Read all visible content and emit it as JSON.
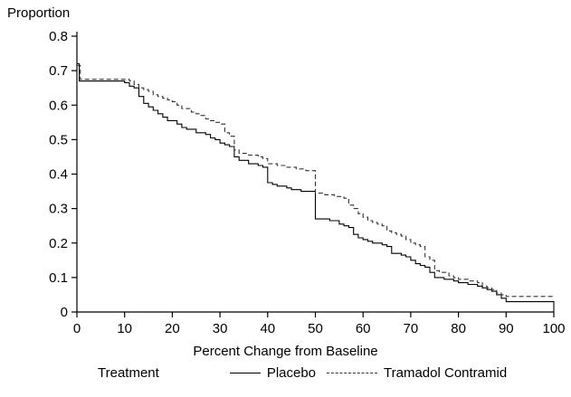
{
  "chart_data": {
    "type": "line",
    "subtype": "step",
    "title": "",
    "xlabel": "Percent Change from Baseline",
    "ylabel": "Proportion",
    "xlim": [
      0,
      100
    ],
    "ylim": [
      0,
      0.8
    ],
    "xticks": [
      0,
      10,
      20,
      30,
      40,
      50,
      60,
      70,
      80,
      90,
      100
    ],
    "yticks": [
      0,
      0.1,
      0.2,
      0.3,
      0.4,
      0.5,
      0.6,
      0.7,
      0.8
    ],
    "grid": false,
    "legend_title": "Treatment",
    "legend_position": "bottom",
    "colors": {
      "axis": "#000000",
      "solid_line": "#000000",
      "dashed_line": "#333333"
    },
    "series": [
      {
        "name": "Placebo",
        "style": "solid",
        "points": [
          [
            0,
            0.72
          ],
          [
            0.5,
            0.67
          ],
          [
            10,
            0.665
          ],
          [
            11,
            0.655
          ],
          [
            12,
            0.65
          ],
          [
            13,
            0.625
          ],
          [
            14,
            0.605
          ],
          [
            15,
            0.595
          ],
          [
            16,
            0.585
          ],
          [
            17,
            0.575
          ],
          [
            18,
            0.565
          ],
          [
            19,
            0.555
          ],
          [
            21,
            0.545
          ],
          [
            22,
            0.535
          ],
          [
            23,
            0.53
          ],
          [
            25,
            0.52
          ],
          [
            27,
            0.515
          ],
          [
            28,
            0.505
          ],
          [
            29,
            0.5
          ],
          [
            30,
            0.49
          ],
          [
            31,
            0.485
          ],
          [
            32,
            0.48
          ],
          [
            33,
            0.45
          ],
          [
            34,
            0.44
          ],
          [
            36,
            0.43
          ],
          [
            38,
            0.425
          ],
          [
            39,
            0.42
          ],
          [
            40,
            0.375
          ],
          [
            41,
            0.37
          ],
          [
            42,
            0.365
          ],
          [
            44,
            0.36
          ],
          [
            45,
            0.355
          ],
          [
            47,
            0.35
          ],
          [
            50,
            0.27
          ],
          [
            53,
            0.265
          ],
          [
            55,
            0.255
          ],
          [
            56,
            0.25
          ],
          [
            57,
            0.245
          ],
          [
            58,
            0.225
          ],
          [
            59,
            0.215
          ],
          [
            60,
            0.21
          ],
          [
            61,
            0.205
          ],
          [
            62,
            0.2
          ],
          [
            64,
            0.195
          ],
          [
            65,
            0.19
          ],
          [
            66,
            0.17
          ],
          [
            68,
            0.165
          ],
          [
            69,
            0.16
          ],
          [
            70,
            0.15
          ],
          [
            71,
            0.14
          ],
          [
            72,
            0.135
          ],
          [
            73,
            0.13
          ],
          [
            74,
            0.115
          ],
          [
            75,
            0.1
          ],
          [
            77,
            0.095
          ],
          [
            79,
            0.09
          ],
          [
            80,
            0.085
          ],
          [
            82,
            0.08
          ],
          [
            84,
            0.075
          ],
          [
            85,
            0.07
          ],
          [
            86,
            0.065
          ],
          [
            87,
            0.06
          ],
          [
            88,
            0.05
          ],
          [
            89,
            0.04
          ],
          [
            90,
            0.03
          ],
          [
            100,
            0
          ]
        ]
      },
      {
        "name": "Tramadol Contramid",
        "style": "dashed",
        "points": [
          [
            0,
            0.715
          ],
          [
            0.7,
            0.675
          ],
          [
            11,
            0.67
          ],
          [
            12,
            0.66
          ],
          [
            13,
            0.65
          ],
          [
            14,
            0.645
          ],
          [
            15,
            0.64
          ],
          [
            16,
            0.63
          ],
          [
            17,
            0.625
          ],
          [
            18,
            0.62
          ],
          [
            19,
            0.615
          ],
          [
            20,
            0.61
          ],
          [
            21,
            0.6
          ],
          [
            22,
            0.59
          ],
          [
            24,
            0.58
          ],
          [
            25,
            0.575
          ],
          [
            26,
            0.57
          ],
          [
            27,
            0.56
          ],
          [
            28,
            0.555
          ],
          [
            29,
            0.55
          ],
          [
            30,
            0.545
          ],
          [
            31,
            0.52
          ],
          [
            32,
            0.51
          ],
          [
            33,
            0.47
          ],
          [
            34,
            0.46
          ],
          [
            36,
            0.455
          ],
          [
            38,
            0.45
          ],
          [
            39,
            0.445
          ],
          [
            40,
            0.43
          ],
          [
            42,
            0.425
          ],
          [
            44,
            0.42
          ],
          [
            46,
            0.415
          ],
          [
            48,
            0.41
          ],
          [
            50,
            0.345
          ],
          [
            52,
            0.34
          ],
          [
            54,
            0.335
          ],
          [
            56,
            0.33
          ],
          [
            57,
            0.31
          ],
          [
            58,
            0.3
          ],
          [
            59,
            0.285
          ],
          [
            60,
            0.275
          ],
          [
            61,
            0.265
          ],
          [
            62,
            0.26
          ],
          [
            63,
            0.255
          ],
          [
            64,
            0.25
          ],
          [
            65,
            0.235
          ],
          [
            66,
            0.23
          ],
          [
            67,
            0.225
          ],
          [
            68,
            0.22
          ],
          [
            69,
            0.21
          ],
          [
            70,
            0.2
          ],
          [
            71,
            0.195
          ],
          [
            72,
            0.19
          ],
          [
            73,
            0.16
          ],
          [
            74,
            0.15
          ],
          [
            75,
            0.12
          ],
          [
            76,
            0.115
          ],
          [
            78,
            0.105
          ],
          [
            79,
            0.1
          ],
          [
            80,
            0.095
          ],
          [
            82,
            0.09
          ],
          [
            84,
            0.085
          ],
          [
            85,
            0.075
          ],
          [
            86,
            0.07
          ],
          [
            87,
            0.065
          ],
          [
            88,
            0.055
          ],
          [
            89,
            0.05
          ],
          [
            90,
            0.045
          ],
          [
            100,
            0.045
          ]
        ]
      }
    ]
  }
}
